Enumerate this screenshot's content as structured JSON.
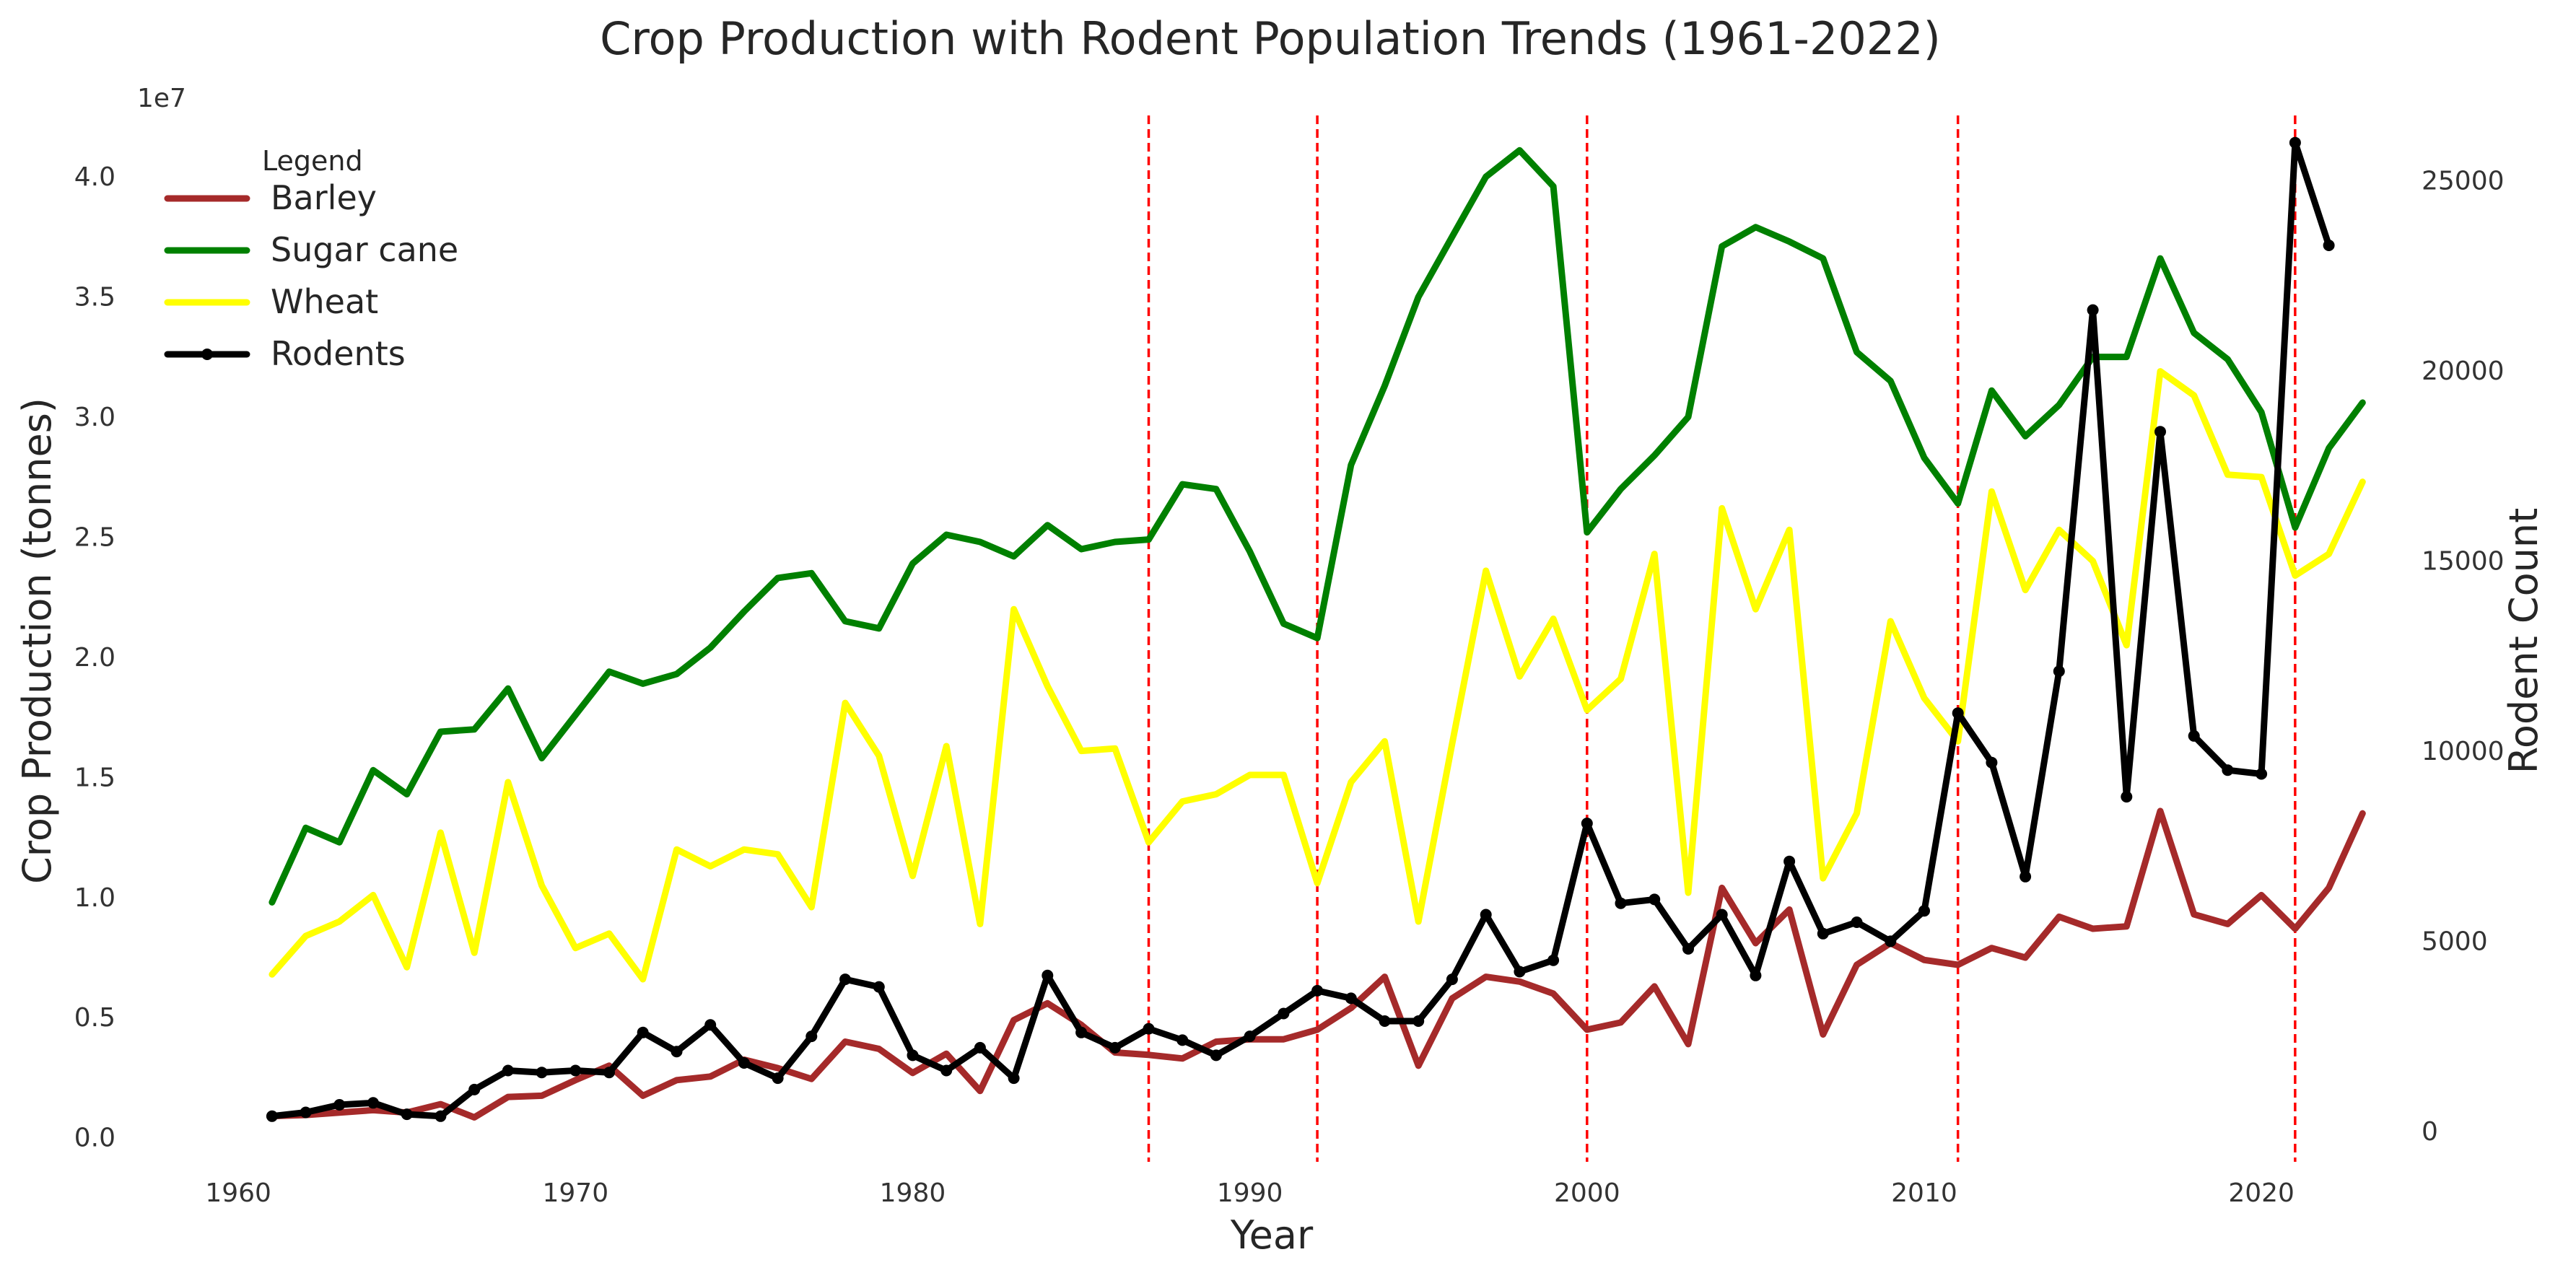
{
  "chart_data": {
    "type": "line",
    "title": "Crop Production with Rodent Population Trends (1961-2022)",
    "xlabel": "Year",
    "ylabel": "Crop Production (tonnes)",
    "y2label": "Rodent Count",
    "y_offset_label": "1e7",
    "xlim": [
      1957,
      2024
    ],
    "ylim": [
      -1000000,
      43000000
    ],
    "y2lim": [
      -800,
      27000
    ],
    "x_ticks": [
      "1960",
      "1970",
      "1980",
      "1990",
      "2000",
      "2010",
      "2020"
    ],
    "y_ticks": [
      "0.0",
      "0.5",
      "1.0",
      "1.5",
      "2.0",
      "2.5",
      "3.0",
      "3.5",
      "4.0"
    ],
    "y2_ticks": [
      "0",
      "5000",
      "10000",
      "15000",
      "20000",
      "25000"
    ],
    "grid": false,
    "vlines": [
      1987,
      1992,
      2000,
      2011,
      2021
    ],
    "vline_color": "#ff0000",
    "legend": {
      "title": "Legend",
      "position": "top-left",
      "entries": [
        "Barley",
        "Sugar cane",
        "Wheat",
        "Rodents"
      ]
    },
    "series": [
      {
        "name": "Barley",
        "color": "#a52a2a",
        "axis": "left",
        "x": [
          1961,
          1962,
          1963,
          1964,
          1965,
          1966,
          1967,
          1968,
          1969,
          1970,
          1971,
          1972,
          1973,
          1974,
          1975,
          1976,
          1977,
          1978,
          1979,
          1980,
          1981,
          1982,
          1983,
          1984,
          1985,
          1986,
          1987,
          1988,
          1989,
          1990,
          1991,
          1992,
          1993,
          1994,
          1995,
          1996,
          1997,
          1998,
          1999,
          2000,
          2001,
          2002,
          2003,
          2004,
          2005,
          2006,
          2007,
          2008,
          2009,
          2010,
          2011,
          2012,
          2013,
          2014,
          2015,
          2016,
          2017,
          2018,
          2019,
          2020,
          2021,
          2022,
          2023
        ],
        "values": [
          900000,
          950000,
          1050000,
          1150000,
          1050000,
          1400000,
          850000,
          1700000,
          1750000,
          2400000,
          3000000,
          1750000,
          2400000,
          2550000,
          3250000,
          2900000,
          2450000,
          4000000,
          3700000,
          2700000,
          3500000,
          1950000,
          4900000,
          5600000,
          4700000,
          3550000,
          3450000,
          3300000,
          4000000,
          4100000,
          4100000,
          4500000,
          5400000,
          6700000,
          3000000,
          5800000,
          6700000,
          6500000,
          6000000,
          4500000,
          4800000,
          6300000,
          3900000,
          10400000,
          8100000,
          9500000,
          4300000,
          7200000,
          8100000,
          7400000,
          7200000,
          7900000,
          7500000,
          9200000,
          8700000,
          8800000,
          13600000,
          9300000,
          8900000,
          10100000,
          8700000,
          10400000,
          13500000
        ]
      },
      {
        "name": "Sugar cane",
        "color": "#008000",
        "axis": "left",
        "x": [
          1961,
          1962,
          1963,
          1964,
          1965,
          1966,
          1967,
          1968,
          1969,
          1970,
          1971,
          1972,
          1973,
          1974,
          1975,
          1976,
          1977,
          1978,
          1979,
          1980,
          1981,
          1982,
          1983,
          1984,
          1985,
          1986,
          1987,
          1988,
          1989,
          1990,
          1991,
          1992,
          1993,
          1994,
          1995,
          1996,
          1997,
          1998,
          1999,
          2000,
          2001,
          2002,
          2003,
          2004,
          2005,
          2006,
          2007,
          2008,
          2009,
          2010,
          2011,
          2012,
          2013,
          2014,
          2015,
          2016,
          2017,
          2018,
          2019,
          2020,
          2021,
          2022,
          2023
        ],
        "values": [
          9800000,
          12900000,
          12300000,
          15300000,
          14300000,
          16900000,
          17000000,
          18700000,
          15800000,
          17600000,
          19400000,
          18900000,
          19300000,
          20400000,
          21900000,
          23300000,
          23500000,
          21500000,
          21200000,
          23900000,
          25100000,
          24800000,
          24200000,
          25500000,
          24500000,
          24800000,
          24900000,
          27200000,
          27000000,
          24400000,
          21400000,
          20800000,
          28000000,
          31300000,
          35000000,
          37500000,
          40000000,
          41100000,
          39600000,
          25200000,
          27000000,
          28400000,
          30000000,
          37100000,
          37900000,
          37300000,
          36600000,
          32700000,
          31500000,
          28300000,
          26400000,
          31100000,
          29200000,
          30500000,
          32500000,
          32500000,
          36600000,
          33500000,
          32400000,
          30200000,
          25400000,
          28700000,
          30600000
        ]
      },
      {
        "name": "Wheat",
        "color": "#ffff00",
        "axis": "left",
        "x": [
          1961,
          1962,
          1963,
          1964,
          1965,
          1966,
          1967,
          1968,
          1969,
          1970,
          1971,
          1972,
          1973,
          1974,
          1975,
          1976,
          1977,
          1978,
          1979,
          1980,
          1981,
          1982,
          1983,
          1984,
          1985,
          1986,
          1987,
          1988,
          1989,
          1990,
          1991,
          1992,
          1993,
          1994,
          1995,
          1996,
          1997,
          1998,
          1999,
          2000,
          2001,
          2002,
          2003,
          2004,
          2005,
          2006,
          2007,
          2008,
          2009,
          2010,
          2011,
          2012,
          2013,
          2014,
          2015,
          2016,
          2017,
          2018,
          2019,
          2020,
          2021,
          2022,
          2023
        ],
        "values": [
          6800000,
          8400000,
          9000000,
          10100000,
          7100000,
          12700000,
          7700000,
          14800000,
          10500000,
          7900000,
          8500000,
          6600000,
          12000000,
          11300000,
          12000000,
          11800000,
          9600000,
          18100000,
          15900000,
          10900000,
          16300000,
          8900000,
          22000000,
          18800000,
          16100000,
          16200000,
          12300000,
          14000000,
          14300000,
          15100000,
          15100000,
          10600000,
          14800000,
          16500000,
          9000000,
          16400000,
          23600000,
          19200000,
          21600000,
          17800000,
          19100000,
          24300000,
          10200000,
          26200000,
          22000000,
          25300000,
          10800000,
          13500000,
          21500000,
          18300000,
          16500000,
          26900000,
          22800000,
          25300000,
          24000000,
          20500000,
          31900000,
          30900000,
          27600000,
          27500000,
          23400000,
          24300000,
          27300000
        ]
      },
      {
        "name": "Rodents",
        "color": "#000000",
        "axis": "right",
        "markers": true,
        "x": [
          1961,
          1962,
          1963,
          1964,
          1965,
          1966,
          1967,
          1968,
          1969,
          1970,
          1971,
          1972,
          1973,
          1974,
          1975,
          1976,
          1977,
          1978,
          1979,
          1980,
          1981,
          1982,
          1983,
          1984,
          1985,
          1986,
          1987,
          1988,
          1989,
          1990,
          1991,
          1992,
          1993,
          1994,
          1995,
          1996,
          1997,
          1998,
          1999,
          2000,
          2001,
          2002,
          2003,
          2004,
          2005,
          2006,
          2007,
          2008,
          2009,
          2010,
          2011,
          2012,
          2013,
          2014,
          2015,
          2016,
          2017,
          2018,
          2019,
          2020,
          2021,
          2022
        ],
        "values": [
          400,
          500,
          700,
          750,
          450,
          400,
          1100,
          1600,
          1550,
          1600,
          1550,
          2600,
          2100,
          2800,
          1800,
          1400,
          2500,
          4000,
          3800,
          2000,
          1600,
          2200,
          1400,
          4100,
          2600,
          2200,
          2700,
          2400,
          2000,
          2500,
          3100,
          3700,
          3500,
          2900,
          2900,
          4000,
          5700,
          4200,
          4500,
          8100,
          6000,
          6100,
          4800,
          5700,
          4100,
          7100,
          5200,
          5500,
          5000,
          5800,
          11000,
          9700,
          6700,
          12100,
          21600,
          8800,
          18400,
          10400,
          9500,
          9400,
          26000,
          23300
        ]
      }
    ]
  }
}
